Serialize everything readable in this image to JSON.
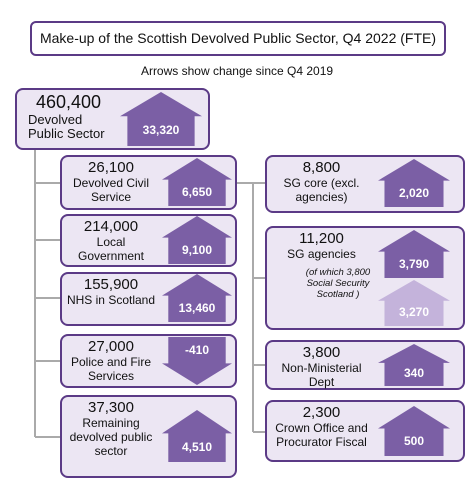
{
  "header": {
    "title": "Make-up of the Scottish Devolved Public Sector, Q4 2022 (FTE)",
    "subtitle": "Arrows show change since Q4 2019"
  },
  "nodes": [
    {
      "value": "460,400",
      "label": "Devolved Public Sector",
      "change": "33,320"
    },
    {
      "value": "26,100",
      "label": "Devolved Civil Service",
      "change": "6,650"
    },
    {
      "value": "214,000",
      "label": "Local Government",
      "change": "9,100"
    },
    {
      "value": "155,900",
      "label": "NHS in Scotland",
      "change": "13,460"
    },
    {
      "value": "27,000",
      "label": "Police and Fire Services",
      "change": "-410"
    },
    {
      "value": "37,300",
      "label": "Remaining devolved public sector",
      "change": "4,510"
    },
    {
      "value": "8,800",
      "label": "SG core (excl. agencies)",
      "change": "2,020"
    },
    {
      "value": "11,200",
      "label": "SG agencies",
      "change": "3,790",
      "note": "(of which 3,800 Social Security Scotland )",
      "note_change": "3,270"
    },
    {
      "value": "3,800",
      "label": "Non-Ministerial Dept",
      "change": "340"
    },
    {
      "value": "2,300",
      "label": "Crown Office and Procurator Fiscal",
      "change": "500"
    }
  ]
}
